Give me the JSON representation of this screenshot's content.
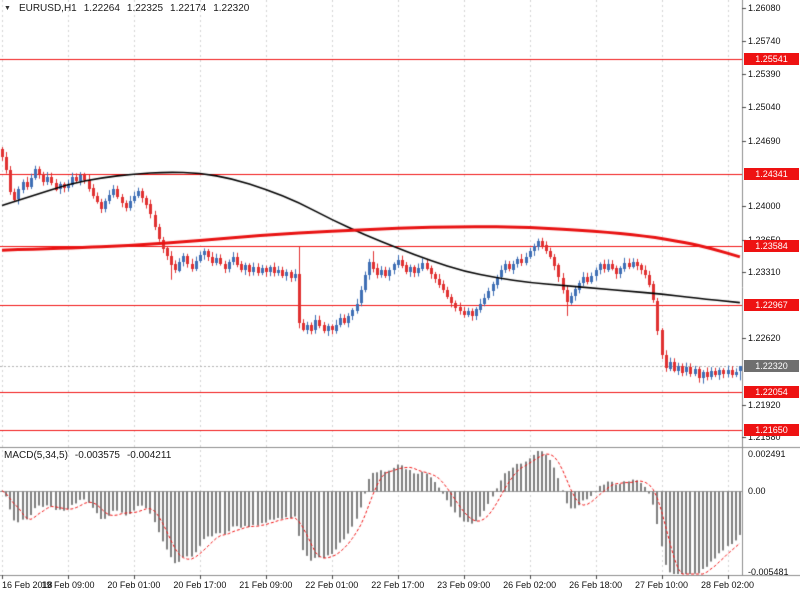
{
  "header": {
    "dropdown_icon": "▼",
    "symbol_timeframe": "EURUSD,H1",
    "ohlc": {
      "open": "1.22264",
      "high": "1.22325",
      "low": "1.22174",
      "close": "1.22320"
    }
  },
  "colors": {
    "background": "#ffffff",
    "bull": "#3f6fb5",
    "bear": "#e03131",
    "grid": "#d4d4d4",
    "level_line": "#f01414",
    "badge_red": "#ee1212",
    "badge_current": "#6f6f6f",
    "histogram": "#7f7f7f",
    "signal": "#f01414",
    "text": "#1a1a1a"
  },
  "chart_data": {
    "type": "candlestick",
    "title": "EURUSD,H1",
    "x_axis": {
      "tick_labels": [
        "16 Feb 2018",
        "19 Feb 09:00",
        "20 Feb 01:00",
        "20 Feb 17:00",
        "21 Feb 09:00",
        "22 Feb 01:00",
        "22 Feb 17:00",
        "23 Feb 09:00",
        "26 Feb 02:00",
        "26 Feb 18:00",
        "27 Feb 10:00",
        "28 Feb 02:00"
      ],
      "tick_bar_indices": [
        0,
        16,
        32,
        48,
        64,
        80,
        96,
        112,
        128,
        144,
        160,
        176
      ],
      "total_bars": 180
    },
    "y_axis": {
      "range": {
        "top": 1.26165,
        "bottom": 1.21475
      },
      "tick_labels": [
        {
          "text": "1.26080",
          "price": 1.2608
        },
        {
          "text": "1.25740",
          "price": 1.2574
        },
        {
          "text": "1.25390",
          "price": 1.2539
        },
        {
          "text": "1.25040",
          "price": 1.2504
        },
        {
          "text": "1.24690",
          "price": 1.2469
        },
        {
          "text": "1.24000",
          "price": 1.24
        },
        {
          "text": "1.23650",
          "price": 1.2365
        },
        {
          "text": "1.23310",
          "price": 1.2331
        },
        {
          "text": "1.22620",
          "price": 1.2262
        },
        {
          "text": "1.21920",
          "price": 1.2192
        },
        {
          "text": "1.21580",
          "price": 1.2158
        }
      ]
    },
    "series": {
      "first_open": 1.246,
      "closes": [
        1.2452,
        1.2438,
        1.2415,
        1.2407,
        1.2418,
        1.2426,
        1.2421,
        1.243,
        1.2439,
        1.2434,
        1.2426,
        1.2431,
        1.2425,
        1.2418,
        1.2423,
        1.2419,
        1.2423,
        1.2431,
        1.2427,
        1.2433,
        1.2428,
        1.2419,
        1.2411,
        1.2405,
        1.2398,
        1.2406,
        1.2412,
        1.2418,
        1.241,
        1.2404,
        1.2399,
        1.2406,
        1.2411,
        1.2416,
        1.2409,
        1.2402,
        1.2391,
        1.2378,
        1.2365,
        1.2356,
        1.2348,
        1.2339,
        1.2333,
        1.2342,
        1.2348,
        1.234,
        1.2335,
        1.2343,
        1.2349,
        1.2353,
        1.2347,
        1.2341,
        1.2346,
        1.234,
        1.2335,
        1.2342,
        1.2347,
        1.2339,
        1.2333,
        1.2338,
        1.2331,
        1.2336,
        1.233,
        1.2335,
        1.2331,
        1.2336,
        1.233,
        1.2333,
        1.2327,
        1.2331,
        1.2325,
        1.2329,
        1.2278,
        1.2271,
        1.2276,
        1.227,
        1.2281,
        1.2275,
        1.2269,
        1.2274,
        1.227,
        1.2276,
        1.2283,
        1.2278,
        1.2285,
        1.2291,
        1.2298,
        1.2312,
        1.2328,
        1.2342,
        1.2335,
        1.2328,
        1.2333,
        1.2327,
        1.2333,
        1.2339,
        1.2344,
        1.2338,
        1.2331,
        1.2336,
        1.233,
        1.2335,
        1.2341,
        1.2335,
        1.2329,
        1.2324,
        1.2318,
        1.2312,
        1.2305,
        1.2299,
        1.2294,
        1.229,
        1.2286,
        1.229,
        1.2285,
        1.2292,
        1.2298,
        1.2304,
        1.2311,
        1.2318,
        1.2326,
        1.2333,
        1.2339,
        1.2334,
        1.234,
        1.2345,
        1.2341,
        1.2347,
        1.2353,
        1.2358,
        1.2364,
        1.2359,
        1.2353,
        1.2347,
        1.2338,
        1.2325,
        1.2312,
        1.2299,
        1.2306,
        1.2313,
        1.232,
        1.2326,
        1.2321,
        1.2327,
        1.2333,
        1.2339,
        1.2334,
        1.234,
        1.2335,
        1.2329,
        1.2335,
        1.2341,
        1.2337,
        1.2342,
        1.2338,
        1.2333,
        1.2328,
        1.2318,
        1.2301,
        1.227,
        1.2244,
        1.223,
        1.2237,
        1.2228,
        1.2233,
        1.2226,
        1.2231,
        1.2224,
        1.2229,
        1.222,
        1.2226,
        1.2221,
        1.2227,
        1.2223,
        1.2228,
        1.2224,
        1.2228,
        1.2223,
        1.22264,
        1.2232
      ],
      "last_bar_ohlc": {
        "o": 1.22264,
        "h": 1.22325,
        "l": 1.22174,
        "c": 1.2232
      }
    },
    "wick_overrides": {
      "41": {
        "l": 1.2323
      },
      "72": {
        "h": 1.2358,
        "l": 1.2272
      },
      "90": {
        "h": 1.2353
      },
      "131": {
        "h": 1.2367
      },
      "137": {
        "l": 1.2285
      },
      "170": {
        "l": 1.2214
      },
      "179": {
        "h": 1.22325,
        "l": 1.22174
      }
    },
    "moving_averages": [
      {
        "name": "ma-medium-black",
        "color": "#000000",
        "width": 1.6,
        "points": [
          [
            0,
            1.2401
          ],
          [
            8,
            1.2412
          ],
          [
            16,
            1.2423
          ],
          [
            24,
            1.243
          ],
          [
            32,
            1.2434
          ],
          [
            40,
            1.2436
          ],
          [
            48,
            1.2435
          ],
          [
            56,
            1.2429
          ],
          [
            64,
            1.2418
          ],
          [
            72,
            1.2404
          ],
          [
            80,
            1.2386
          ],
          [
            88,
            1.237
          ],
          [
            96,
            1.2356
          ],
          [
            104,
            1.2343
          ],
          [
            112,
            1.2332
          ],
          [
            120,
            1.2325
          ],
          [
            128,
            1.232
          ],
          [
            136,
            1.2317
          ],
          [
            144,
            1.2314
          ],
          [
            152,
            1.2311
          ],
          [
            160,
            1.2308
          ],
          [
            168,
            1.2304
          ],
          [
            179,
            1.2299
          ]
        ]
      },
      {
        "name": "ma-slow-red",
        "color": "#e81212",
        "width": 3,
        "points": [
          [
            0,
            1.2354
          ],
          [
            16,
            1.2356
          ],
          [
            32,
            1.2359
          ],
          [
            48,
            1.2364
          ],
          [
            64,
            1.237
          ],
          [
            80,
            1.2374
          ],
          [
            96,
            1.2377
          ],
          [
            112,
            1.2379
          ],
          [
            128,
            1.2378
          ],
          [
            144,
            1.2374
          ],
          [
            156,
            1.2369
          ],
          [
            166,
            1.2362
          ],
          [
            172,
            1.2356
          ],
          [
            179,
            1.2347
          ]
        ]
      }
    ],
    "horizontal_levels": [
      {
        "price": 1.25541,
        "label": "1.25541"
      },
      {
        "price": 1.24341,
        "label": "1.24341"
      },
      {
        "price": 1.23584,
        "label": "1.23584"
      },
      {
        "price": 1.22967,
        "label": "1.22967"
      },
      {
        "price": 1.22054,
        "label": "1.22054"
      },
      {
        "price": 1.2165,
        "label": "1.21650"
      }
    ],
    "current_price": {
      "price": 1.2232,
      "label": "1.22320"
    },
    "macd": {
      "label": "MACD(5,34,5)",
      "params": [
        5,
        34,
        5
      ],
      "value_label": "-0.003575",
      "signal_label": "-0.004211",
      "scale": {
        "top": 0.00288,
        "bottom": -0.00568
      },
      "axis_labels": [
        {
          "text": "0.002491",
          "value": 0.002491
        },
        {
          "text": "0.00",
          "value": 0
        },
        {
          "text": "-0.005481",
          "value": -0.005481
        }
      ]
    }
  }
}
